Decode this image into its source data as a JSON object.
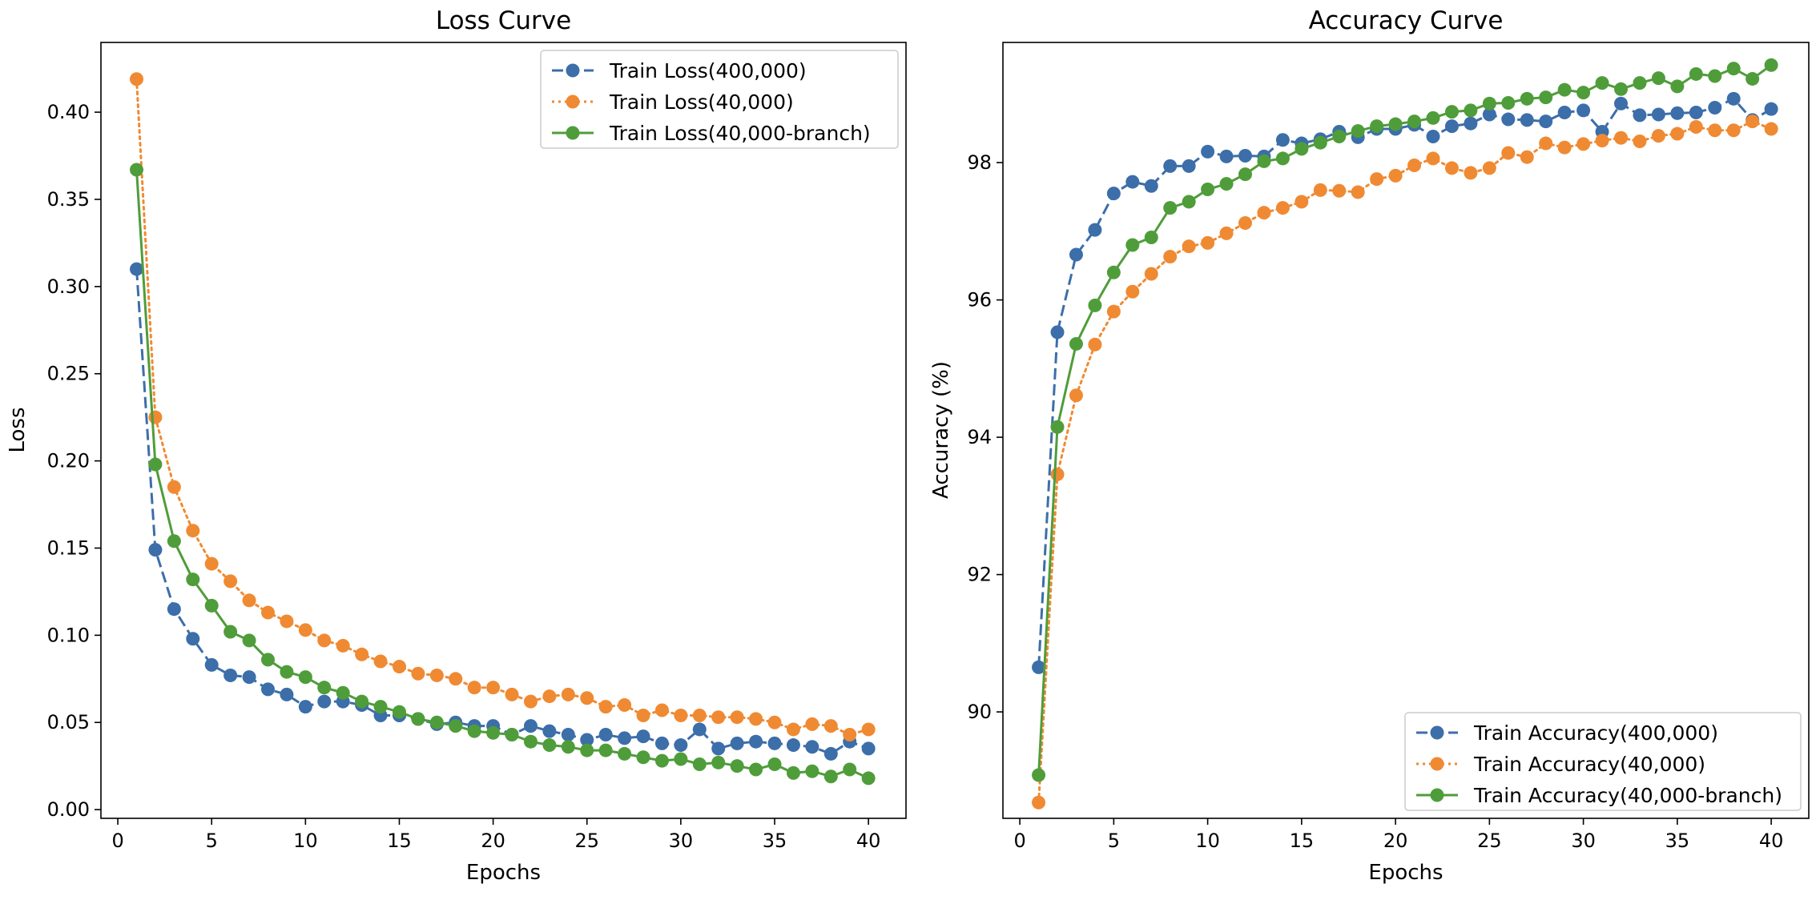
{
  "chart_data": [
    {
      "type": "line",
      "title": "Loss Curve",
      "xlabel": "Epochs",
      "ylabel": "Loss",
      "xlim": [
        -0.9,
        42
      ],
      "ylim": [
        -0.005,
        0.44
      ],
      "xticks": [
        0,
        5,
        10,
        15,
        20,
        25,
        30,
        35,
        40
      ],
      "yticks": [
        0.0,
        0.05,
        0.1,
        0.15,
        0.2,
        0.25,
        0.3,
        0.35,
        0.4
      ],
      "ytick_labels": [
        "0.00",
        "0.05",
        "0.10",
        "0.15",
        "0.20",
        "0.25",
        "0.30",
        "0.35",
        "0.40"
      ],
      "legend_position": "top-right",
      "grid": false,
      "x": [
        1,
        2,
        3,
        4,
        5,
        6,
        7,
        8,
        9,
        10,
        11,
        12,
        13,
        14,
        15,
        16,
        17,
        18,
        19,
        20,
        21,
        22,
        23,
        24,
        25,
        26,
        27,
        28,
        29,
        30,
        31,
        32,
        33,
        34,
        35,
        36,
        37,
        38,
        39,
        40
      ],
      "series": [
        {
          "name": "Train Loss(400,000)",
          "color": "#3c6ea9",
          "linestyle": "dashed",
          "values": [
            0.31,
            0.149,
            0.115,
            0.098,
            0.083,
            0.077,
            0.076,
            0.069,
            0.066,
            0.059,
            0.062,
            0.062,
            0.06,
            0.054,
            0.054,
            0.052,
            0.049,
            0.05,
            0.048,
            0.048,
            0.043,
            0.048,
            0.045,
            0.043,
            0.04,
            0.043,
            0.041,
            0.042,
            0.038,
            0.037,
            0.046,
            0.035,
            0.038,
            0.039,
            0.038,
            0.037,
            0.036,
            0.032,
            0.039,
            0.035
          ]
        },
        {
          "name": "Train Loss(40,000)",
          "color": "#ef8a33",
          "linestyle": "dotted",
          "values": [
            0.419,
            0.225,
            0.185,
            0.16,
            0.141,
            0.131,
            0.12,
            0.113,
            0.108,
            0.103,
            0.097,
            0.094,
            0.089,
            0.085,
            0.082,
            0.078,
            0.077,
            0.075,
            0.07,
            0.07,
            0.066,
            0.062,
            0.065,
            0.066,
            0.064,
            0.059,
            0.06,
            0.054,
            0.057,
            0.054,
            0.054,
            0.053,
            0.053,
            0.052,
            0.05,
            0.046,
            0.049,
            0.048,
            0.043,
            0.046
          ]
        },
        {
          "name": "Train Loss(40,000-branch)",
          "color": "#4f9d3a",
          "linestyle": "solid",
          "values": [
            0.367,
            0.198,
            0.154,
            0.132,
            0.117,
            0.102,
            0.097,
            0.086,
            0.079,
            0.076,
            0.07,
            0.067,
            0.062,
            0.059,
            0.056,
            0.052,
            0.05,
            0.048,
            0.045,
            0.044,
            0.043,
            0.039,
            0.037,
            0.036,
            0.034,
            0.034,
            0.032,
            0.03,
            0.028,
            0.029,
            0.026,
            0.027,
            0.025,
            0.023,
            0.026,
            0.021,
            0.022,
            0.019,
            0.023,
            0.018
          ]
        }
      ]
    },
    {
      "type": "line",
      "title": "Accuracy Curve",
      "xlabel": "Epochs",
      "ylabel": "Accuracy (%)",
      "xlim": [
        -0.9,
        42
      ],
      "ylim": [
        88.45,
        99.75
      ],
      "xticks": [
        0,
        5,
        10,
        15,
        20,
        25,
        30,
        35,
        40
      ],
      "yticks": [
        90,
        92,
        94,
        96,
        98
      ],
      "ytick_labels": [
        "90",
        "92",
        "94",
        "96",
        "98"
      ],
      "legend_position": "bottom-right",
      "grid": false,
      "x": [
        1,
        2,
        3,
        4,
        5,
        6,
        7,
        8,
        9,
        10,
        11,
        12,
        13,
        14,
        15,
        16,
        17,
        18,
        19,
        20,
        21,
        22,
        23,
        24,
        25,
        26,
        27,
        28,
        29,
        30,
        31,
        32,
        33,
        34,
        35,
        36,
        37,
        38,
        39,
        40
      ],
      "series": [
        {
          "name": "Train Accuracy(400,000)",
          "color": "#3c6ea9",
          "linestyle": "dashed",
          "values": [
            90.65,
            95.53,
            96.66,
            97.02,
            97.55,
            97.72,
            97.66,
            97.95,
            97.95,
            98.16,
            98.09,
            98.1,
            98.09,
            98.33,
            98.28,
            98.34,
            98.45,
            98.37,
            98.49,
            98.49,
            98.55,
            98.38,
            98.53,
            98.57,
            98.7,
            98.63,
            98.62,
            98.6,
            98.73,
            98.76,
            98.45,
            98.86,
            98.69,
            98.7,
            98.72,
            98.73,
            98.8,
            98.93,
            98.62,
            98.78
          ]
        },
        {
          "name": "Train Accuracy(40,000)",
          "color": "#ef8a33",
          "linestyle": "dotted",
          "values": [
            88.68,
            93.46,
            94.61,
            95.35,
            95.83,
            96.12,
            96.38,
            96.63,
            96.78,
            96.83,
            96.97,
            97.12,
            97.27,
            97.34,
            97.43,
            97.6,
            97.59,
            97.57,
            97.76,
            97.81,
            97.96,
            98.06,
            97.92,
            97.85,
            97.92,
            98.14,
            98.08,
            98.28,
            98.22,
            98.27,
            98.32,
            98.36,
            98.31,
            98.39,
            98.42,
            98.52,
            98.47,
            98.47,
            98.6,
            98.49
          ]
        },
        {
          "name": "Train Accuracy(40,000-branch)",
          "color": "#4f9d3a",
          "linestyle": "solid",
          "values": [
            89.08,
            94.15,
            95.36,
            95.92,
            96.4,
            96.8,
            96.91,
            97.34,
            97.43,
            97.61,
            97.69,
            97.83,
            98.02,
            98.06,
            98.2,
            98.29,
            98.38,
            98.46,
            98.53,
            98.56,
            98.6,
            98.65,
            98.74,
            98.76,
            98.86,
            98.87,
            98.93,
            98.95,
            99.06,
            99.02,
            99.16,
            99.07,
            99.16,
            99.23,
            99.11,
            99.29,
            99.26,
            99.37,
            99.22,
            99.42
          ]
        }
      ]
    }
  ]
}
